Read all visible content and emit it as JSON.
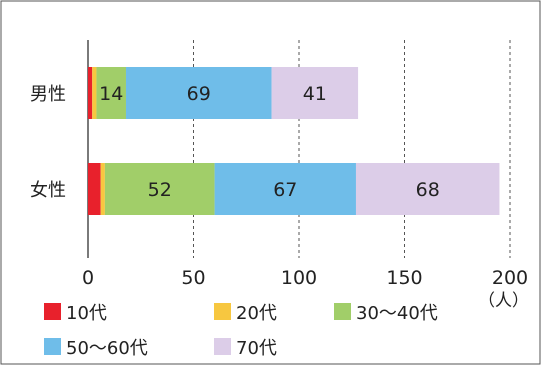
{
  "chart_data": {
    "type": "bar",
    "orientation": "horizontal",
    "stacked": true,
    "categories": [
      "男性",
      "女性"
    ],
    "series": [
      {
        "name": "10代",
        "color": "#e8212c",
        "values": [
          2,
          6
        ],
        "labels": [
          "",
          ""
        ]
      },
      {
        "name": "20代",
        "color": "#f7c740",
        "values": [
          2,
          2
        ],
        "labels": [
          "",
          ""
        ]
      },
      {
        "name": "30～40代",
        "color": "#a1ce69",
        "values": [
          14,
          52
        ],
        "labels": [
          "14",
          "52"
        ]
      },
      {
        "name": "50～60代",
        "color": "#6fbde9",
        "values": [
          69,
          67
        ],
        "labels": [
          "69",
          "67"
        ]
      },
      {
        "name": "70代",
        "color": "#dccde8",
        "values": [
          41,
          68
        ],
        "labels": [
          "41",
          "68"
        ]
      }
    ],
    "xlim": [
      0,
      200
    ],
    "xticks": [
      "0",
      "50",
      "100",
      "150",
      "200"
    ],
    "xunit": "（人）",
    "grid": "vertical-dashed",
    "legend_position": "bottom"
  }
}
